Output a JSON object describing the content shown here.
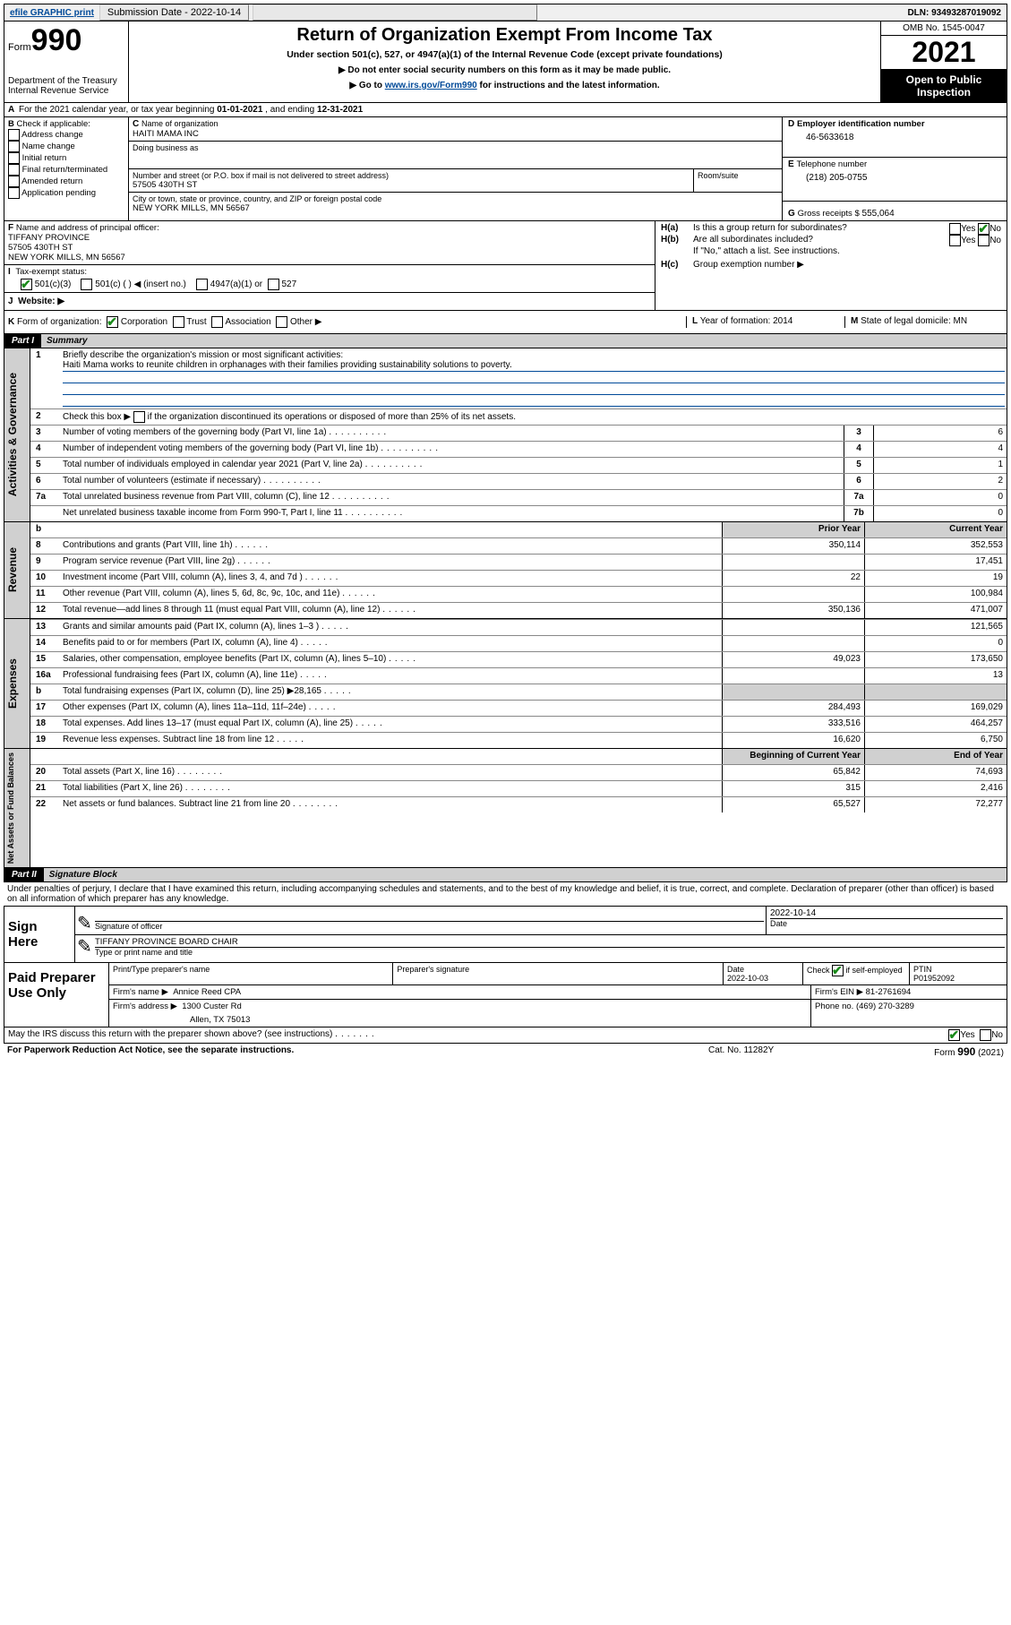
{
  "topbar": {
    "efile": "efile GRAPHIC print",
    "subdate_label": "Submission Date - ",
    "subdate": "2022-10-14",
    "dln_label": "DLN: ",
    "dln": "93493287019092"
  },
  "header": {
    "form_word": "Form",
    "form_num": "990",
    "dept": "Department of the Treasury",
    "irs": "Internal Revenue Service",
    "title": "Return of Organization Exempt From Income Tax",
    "subtitle": "Under section 501(c), 527, or 4947(a)(1) of the Internal Revenue Code (except private foundations)",
    "note1_arrow": "▶",
    "note1": "Do not enter social security numbers on this form as it may be made public.",
    "note2_arrow": "▶",
    "note2_pre": "Go to ",
    "note2_link": "www.irs.gov/Form990",
    "note2_post": " for instructions and the latest information.",
    "omb": "OMB No. 1545-0047",
    "year": "2021",
    "open": "Open to Public Inspection"
  },
  "A": {
    "text_pre": "For the 2021 calendar year, or tax year beginning ",
    "begin": "01-01-2021",
    "mid": " , and ending ",
    "end": "12-31-2021"
  },
  "B": {
    "label": "Check if applicable:",
    "items": [
      "Address change",
      "Name change",
      "Initial return",
      "Final return/terminated",
      "Amended return",
      "Application pending"
    ]
  },
  "C": {
    "name_label": "Name of organization",
    "name": "HAITI MAMA INC",
    "dba_label": "Doing business as",
    "street_label": "Number and street (or P.O. box if mail is not delivered to street address)",
    "room_label": "Room/suite",
    "street": "57505 430TH ST",
    "city_label": "City or town, state or province, country, and ZIP or foreign postal code",
    "city": "NEW YORK MILLS, MN  56567"
  },
  "D": {
    "label": "Employer identification number",
    "value": "46-5633618"
  },
  "E": {
    "label": "Telephone number",
    "value": "(218) 205-0755"
  },
  "G": {
    "label": "Gross receipts $",
    "value": "555,064"
  },
  "F": {
    "label": "Name and address of principal officer:",
    "name": "TIFFANY PROVINCE",
    "street": "57505 430TH ST",
    "city": "NEW YORK MILLS, MN  56567"
  },
  "H": {
    "a": "Is this a group return for subordinates?",
    "b": "Are all subordinates included?",
    "b_note": "If \"No,\" attach a list. See instructions.",
    "c": "Group exemption number ▶",
    "yes": "Yes",
    "no": "No"
  },
  "I": {
    "label": "Tax-exempt status:",
    "opt1": "501(c)(3)",
    "opt2": "501(c) (   ) ◀ (insert no.)",
    "opt3": "4947(a)(1) or",
    "opt4": "527"
  },
  "J": {
    "label": "Website: ▶"
  },
  "K": {
    "label": "Form of organization:",
    "opts": [
      "Corporation",
      "Trust",
      "Association",
      "Other ▶"
    ]
  },
  "L": {
    "label": "Year of formation:",
    "value": "2014"
  },
  "M": {
    "label": "State of legal domicile:",
    "value": "MN"
  },
  "part1": {
    "hdr": "Part I",
    "title": "Summary",
    "sideA": "Activities & Governance",
    "sideR": "Revenue",
    "sideE": "Expenses",
    "sideN": "Net Assets or Fund Balances",
    "q1": "Briefly describe the organization's mission or most significant activities:",
    "mission": "Haiti Mama works to reunite children in orphanages with their families providing sustainability solutions to poverty.",
    "q2": "Check this box ▶",
    "q2_post": " if the organization discontinued its operations or disposed of more than 25% of its net assets.",
    "rows_gov": [
      {
        "n": "3",
        "d": "Number of voting members of the governing body (Part VI, line 1a)",
        "box": "3",
        "v": "6"
      },
      {
        "n": "4",
        "d": "Number of independent voting members of the governing body (Part VI, line 1b)",
        "box": "4",
        "v": "4"
      },
      {
        "n": "5",
        "d": "Total number of individuals employed in calendar year 2021 (Part V, line 2a)",
        "box": "5",
        "v": "1"
      },
      {
        "n": "6",
        "d": "Total number of volunteers (estimate if necessary)",
        "box": "6",
        "v": "2"
      },
      {
        "n": "7a",
        "d": "Total unrelated business revenue from Part VIII, column (C), line 12",
        "box": "7a",
        "v": "0"
      },
      {
        "n": "",
        "d": "Net unrelated business taxable income from Form 990-T, Part I, line 11",
        "box": "7b",
        "v": "0"
      }
    ],
    "col_prior": "Prior Year",
    "col_curr": "Current Year",
    "rows_rev": [
      {
        "n": "8",
        "d": "Contributions and grants (Part VIII, line 1h)",
        "p": "350,114",
        "c": "352,553"
      },
      {
        "n": "9",
        "d": "Program service revenue (Part VIII, line 2g)",
        "p": "",
        "c": "17,451"
      },
      {
        "n": "10",
        "d": "Investment income (Part VIII, column (A), lines 3, 4, and 7d )",
        "p": "22",
        "c": "19"
      },
      {
        "n": "11",
        "d": "Other revenue (Part VIII, column (A), lines 5, 6d, 8c, 9c, 10c, and 11e)",
        "p": "",
        "c": "100,984"
      },
      {
        "n": "12",
        "d": "Total revenue—add lines 8 through 11 (must equal Part VIII, column (A), line 12)",
        "p": "350,136",
        "c": "471,007"
      }
    ],
    "rows_exp": [
      {
        "n": "13",
        "d": "Grants and similar amounts paid (Part IX, column (A), lines 1–3 )",
        "p": "",
        "c": "121,565"
      },
      {
        "n": "14",
        "d": "Benefits paid to or for members (Part IX, column (A), line 4)",
        "p": "",
        "c": "0"
      },
      {
        "n": "15",
        "d": "Salaries, other compensation, employee benefits (Part IX, column (A), lines 5–10)",
        "p": "49,023",
        "c": "173,650"
      },
      {
        "n": "16a",
        "d": "Professional fundraising fees (Part IX, column (A), line 11e)",
        "p": "",
        "c": "13"
      },
      {
        "n": "b",
        "d": "Total fundraising expenses (Part IX, column (D), line 25) ▶28,165",
        "p": "grey",
        "c": "grey"
      },
      {
        "n": "17",
        "d": "Other expenses (Part IX, column (A), lines 11a–11d, 11f–24e)",
        "p": "284,493",
        "c": "169,029"
      },
      {
        "n": "18",
        "d": "Total expenses. Add lines 13–17 (must equal Part IX, column (A), line 25)",
        "p": "333,516",
        "c": "464,257"
      },
      {
        "n": "19",
        "d": "Revenue less expenses. Subtract line 18 from line 12",
        "p": "16,620",
        "c": "6,750"
      }
    ],
    "col_boy": "Beginning of Current Year",
    "col_eoy": "End of Year",
    "rows_net": [
      {
        "n": "20",
        "d": "Total assets (Part X, line 16)",
        "p": "65,842",
        "c": "74,693"
      },
      {
        "n": "21",
        "d": "Total liabilities (Part X, line 26)",
        "p": "315",
        "c": "2,416"
      },
      {
        "n": "22",
        "d": "Net assets or fund balances. Subtract line 21 from line 20",
        "p": "65,527",
        "c": "72,277"
      }
    ]
  },
  "part2": {
    "hdr": "Part II",
    "title": "Signature Block",
    "jurat": "Under penalties of perjury, I declare that I have examined this return, including accompanying schedules and statements, and to the best of my knowledge and belief, it is true, correct, and complete. Declaration of preparer (other than officer) is based on all information of which preparer has any knowledge.",
    "sign_here": "Sign Here",
    "sig_of_officer": "Signature of officer",
    "sig_date": "2022-10-14",
    "date_label": "Date",
    "officer_name": "TIFFANY PROVINCE  BOARD CHAIR",
    "officer_label": "Type or print name and title",
    "paid": "Paid Preparer Use Only",
    "prep_name_label": "Print/Type preparer's name",
    "prep_sig_label": "Preparer's signature",
    "prep_date_label": "Date",
    "prep_date": "2022-10-03",
    "check_label": "Check",
    "check_post": "if self-employed",
    "ptin_label": "PTIN",
    "ptin": "P01952092",
    "firm_name_label": "Firm's name   ▶",
    "firm_name": "Annice Reed CPA",
    "firm_ein_label": "Firm's EIN ▶",
    "firm_ein": "81-2761694",
    "firm_addr_label": "Firm's address ▶",
    "firm_addr1": "1300 Custer Rd",
    "firm_addr2": "Allen, TX  75013",
    "phone_label": "Phone no.",
    "phone": "(469) 270-3289",
    "discuss": "May the IRS discuss this return with the preparer shown above? (see instructions)"
  },
  "footer": {
    "pra": "For Paperwork Reduction Act Notice, see the separate instructions.",
    "cat": "Cat. No. 11282Y",
    "form": "Form 990 (2021)"
  }
}
